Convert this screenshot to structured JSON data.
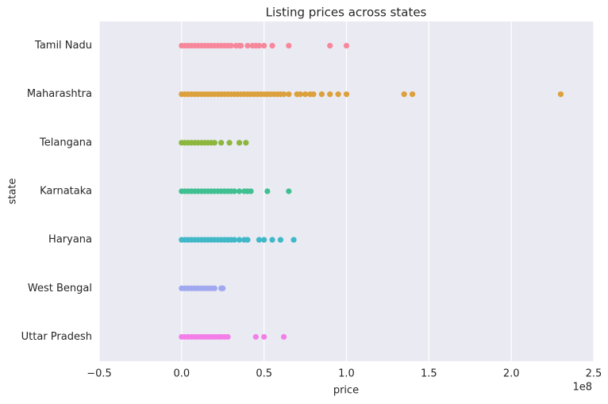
{
  "chart_data": {
    "type": "strip",
    "title": "Listing prices across states",
    "x_label": "price",
    "y_label": "state",
    "x_offset_label": "1e8",
    "xlim": [
      -0.5,
      2.5
    ],
    "xticks": [
      {
        "value": -0.5,
        "label": "−0.5"
      },
      {
        "value": 0,
        "label": "0.0"
      },
      0.5,
      {
        "value": 1,
        "label": "1.0"
      },
      1.5,
      {
        "value": 2,
        "label": "2.0"
      },
      2.5
    ],
    "grid": true,
    "series": [
      {
        "name": "Tamil Nadu",
        "color": "#f7879a",
        "values": [
          0,
          0.02,
          0.04,
          0.06,
          0.08,
          0.1,
          0.12,
          0.14,
          0.16,
          0.18,
          0.2,
          0.22,
          0.24,
          0.26,
          0.28,
          0.3,
          0.33,
          0.35,
          0.36,
          0.4,
          0.43,
          0.45,
          0.47,
          0.5,
          0.55,
          0.65,
          0.9,
          1.0
        ]
      },
      {
        "name": "Maharashtra",
        "color": "#dca03c",
        "values": [
          0,
          0.02,
          0.04,
          0.06,
          0.08,
          0.1,
          0.12,
          0.14,
          0.16,
          0.18,
          0.2,
          0.22,
          0.24,
          0.26,
          0.28,
          0.3,
          0.32,
          0.34,
          0.36,
          0.38,
          0.4,
          0.42,
          0.44,
          0.46,
          0.48,
          0.5,
          0.52,
          0.54,
          0.56,
          0.58,
          0.6,
          0.62,
          0.65,
          0.7,
          0.72,
          0.75,
          0.78,
          0.8,
          0.85,
          0.9,
          0.95,
          1.0,
          1.35,
          1.4,
          2.3
        ]
      },
      {
        "name": "Telangana",
        "color": "#8cb63c",
        "values": [
          0,
          0.02,
          0.04,
          0.06,
          0.08,
          0.1,
          0.12,
          0.14,
          0.16,
          0.18,
          0.2,
          0.24,
          0.29,
          0.35,
          0.39
        ]
      },
      {
        "name": "Karnataka",
        "color": "#40c090",
        "values": [
          0,
          0.02,
          0.04,
          0.06,
          0.08,
          0.1,
          0.12,
          0.14,
          0.16,
          0.18,
          0.2,
          0.22,
          0.24,
          0.26,
          0.28,
          0.3,
          0.32,
          0.35,
          0.38,
          0.4,
          0.42,
          0.52,
          0.65
        ]
      },
      {
        "name": "Haryana",
        "color": "#40b8c8",
        "values": [
          0,
          0.02,
          0.04,
          0.06,
          0.08,
          0.1,
          0.12,
          0.14,
          0.16,
          0.18,
          0.2,
          0.22,
          0.24,
          0.26,
          0.28,
          0.3,
          0.32,
          0.35,
          0.38,
          0.4,
          0.47,
          0.5,
          0.55,
          0.6,
          0.68
        ]
      },
      {
        "name": "West Bengal",
        "color": "#a0a8f0",
        "values": [
          0,
          0.02,
          0.04,
          0.06,
          0.08,
          0.1,
          0.12,
          0.14,
          0.16,
          0.18,
          0.2,
          0.24,
          0.25
        ]
      },
      {
        "name": "Uttar Pradesh",
        "color": "#f47ee8",
        "values": [
          0,
          0.02,
          0.04,
          0.06,
          0.08,
          0.1,
          0.12,
          0.14,
          0.16,
          0.18,
          0.2,
          0.22,
          0.24,
          0.26,
          0.28,
          0.45,
          0.5,
          0.62
        ]
      }
    ]
  }
}
